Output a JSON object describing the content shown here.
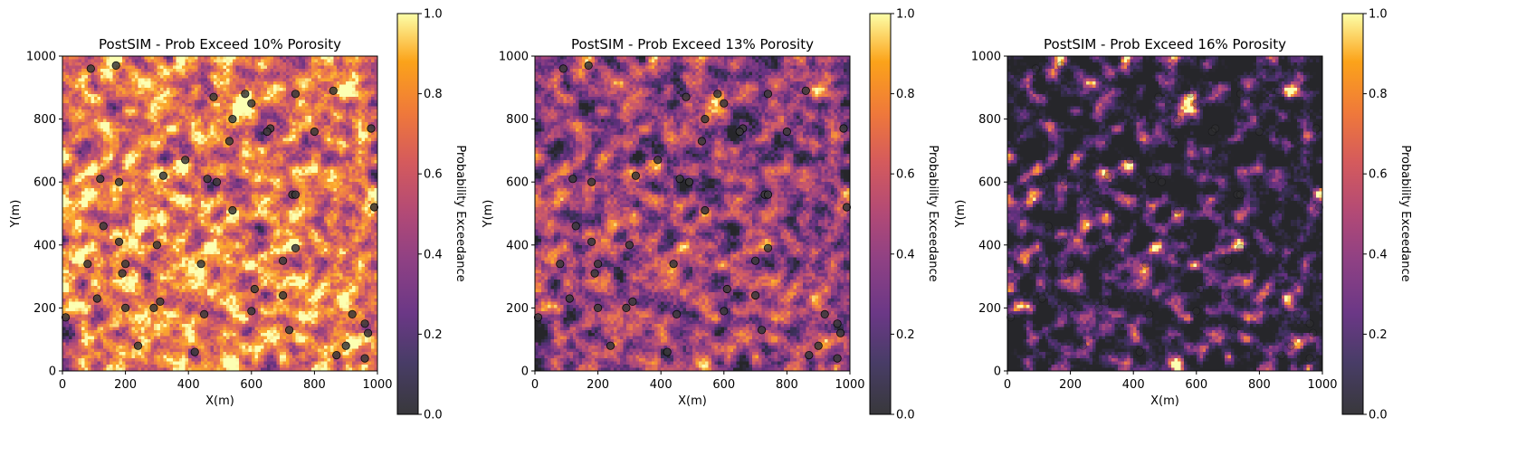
{
  "colors": {
    "colormap": "inferno",
    "marker_fill": "#3a3a3a",
    "marker_edge": "#000000",
    "background": "#ffffff"
  },
  "chart_data": [
    {
      "type": "heatmap",
      "title": "PostSIM - Prob Exceed 10% Porosity",
      "xlabel": "X(m)",
      "ylabel": "Y(m)",
      "xlim": [
        0,
        1000
      ],
      "ylim": [
        0,
        1000
      ],
      "xticks": [
        "0",
        "200",
        "400",
        "600",
        "800",
        "1000"
      ],
      "yticks": [
        "0",
        "200",
        "400",
        "600",
        "800",
        "1000"
      ],
      "grid_cells": [
        100,
        100
      ],
      "grid": false,
      "colorbar": {
        "label": "Probability Exceedance",
        "range": [
          0.0,
          1.0
        ],
        "ticks": [
          "0.0",
          "0.2",
          "0.4",
          "0.6",
          "0.8",
          "1.0"
        ]
      },
      "mean_probability": 0.72
    },
    {
      "type": "heatmap",
      "title": "PostSIM - Prob Exceed 13% Porosity",
      "xlabel": "X(m)",
      "ylabel": "Y(m)",
      "xlim": [
        0,
        1000
      ],
      "ylim": [
        0,
        1000
      ],
      "xticks": [
        "0",
        "200",
        "400",
        "600",
        "800",
        "1000"
      ],
      "yticks": [
        "0",
        "200",
        "400",
        "600",
        "800",
        "1000"
      ],
      "grid_cells": [
        100,
        100
      ],
      "grid": false,
      "colorbar": {
        "label": "Probability Exceedance",
        "range": [
          0.0,
          1.0
        ],
        "ticks": [
          "0.0",
          "0.2",
          "0.4",
          "0.6",
          "0.8",
          "1.0"
        ]
      },
      "mean_probability": 0.42
    },
    {
      "type": "heatmap",
      "title": "PostSIM - Prob Exceed 16% Porosity",
      "xlabel": "X(m)",
      "ylabel": "Y(m)",
      "xlim": [
        0,
        1000
      ],
      "ylim": [
        0,
        1000
      ],
      "xticks": [
        "0",
        "200",
        "400",
        "600",
        "800",
        "1000"
      ],
      "yticks": [
        "0",
        "200",
        "400",
        "600",
        "800",
        "1000"
      ],
      "grid_cells": [
        100,
        100
      ],
      "grid": false,
      "colorbar": {
        "label": "Probability Exceedance",
        "range": [
          0.0,
          1.0
        ],
        "ticks": [
          "0.0",
          "0.2",
          "0.4",
          "0.6",
          "0.8",
          "1.0"
        ]
      },
      "mean_probability": 0.1
    }
  ],
  "wells": [
    [
      90,
      960
    ],
    [
      170,
      970
    ],
    [
      480,
      870
    ],
    [
      580,
      880
    ],
    [
      600,
      850
    ],
    [
      740,
      880
    ],
    [
      860,
      890
    ],
    [
      540,
      800
    ],
    [
      660,
      770
    ],
    [
      650,
      760
    ],
    [
      800,
      760
    ],
    [
      980,
      770
    ],
    [
      390,
      670
    ],
    [
      530,
      730
    ],
    [
      120,
      610
    ],
    [
      180,
      600
    ],
    [
      320,
      620
    ],
    [
      460,
      610
    ],
    [
      490,
      600
    ],
    [
      730,
      560
    ],
    [
      740,
      560
    ],
    [
      990,
      520
    ],
    [
      540,
      510
    ],
    [
      130,
      460
    ],
    [
      180,
      410
    ],
    [
      300,
      400
    ],
    [
      740,
      390
    ],
    [
      80,
      340
    ],
    [
      200,
      340
    ],
    [
      190,
      310
    ],
    [
      440,
      340
    ],
    [
      700,
      350
    ],
    [
      110,
      230
    ],
    [
      610,
      260
    ],
    [
      700,
      240
    ],
    [
      200,
      200
    ],
    [
      290,
      200
    ],
    [
      310,
      220
    ],
    [
      600,
      190
    ],
    [
      450,
      180
    ],
    [
      10,
      170
    ],
    [
      920,
      180
    ],
    [
      960,
      150
    ],
    [
      720,
      130
    ],
    [
      970,
      120
    ],
    [
      240,
      80
    ],
    [
      420,
      60
    ],
    [
      900,
      80
    ],
    [
      870,
      50
    ],
    [
      960,
      40
    ]
  ]
}
